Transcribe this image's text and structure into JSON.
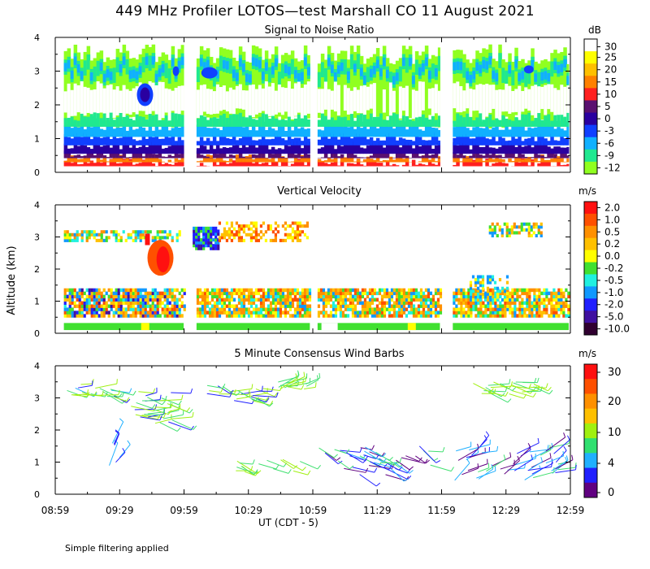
{
  "header": {
    "title": "449 MHz Profiler LOTOS—test Marshall CO 11 August 2021"
  },
  "footer": {
    "note": "Simple filtering applied"
  },
  "axes": {
    "y_label": "Altitude (km)",
    "x_label": "UT  (CDT - 5)",
    "x_ticks": [
      "08:59",
      "09:29",
      "09:59",
      "10:29",
      "10:59",
      "11:29",
      "11:59",
      "12:29",
      "12:59"
    ],
    "y_ticks": [
      "0",
      "1",
      "2",
      "3",
      "4"
    ]
  },
  "colors": {
    "white": "#ffffff"
  },
  "chart_data": [
    {
      "type": "heatmap",
      "title": "Signal to Noise Ratio",
      "unit": "dB",
      "colorbar_labels": [
        "30",
        "25",
        "20",
        "15",
        "10",
        "5",
        "0",
        "-3",
        "-6",
        "-9",
        "-12"
      ],
      "colorbar_colors": [
        "#ffffff",
        "#ffff00",
        "#ffc000",
        "#ff8000",
        "#ff2020",
        "#5a1070",
        "#2a00a0",
        "#1040ff",
        "#10b0ff",
        "#20e890",
        "#90ff20"
      ],
      "xlim_hours": [
        8.983,
        12.983
      ],
      "ylim_km": [
        0,
        4
      ],
      "data_gaps_hours": [
        [
          9.95,
          10.05
        ],
        [
          10.95,
          11.0
        ],
        [
          11.95,
          12.05
        ]
      ]
    },
    {
      "type": "heatmap",
      "title": "Vertical Velocity",
      "unit": "m/s",
      "colorbar_labels": [
        "2.0",
        "1.0",
        "0.5",
        "0.2",
        "0.0",
        "-0.2",
        "-0.5",
        "-1.0",
        "-2.0",
        "-5.0",
        "-10.0"
      ],
      "colorbar_colors": [
        "#ff1010",
        "#ff5000",
        "#ff9000",
        "#ffc000",
        "#ffff00",
        "#40e030",
        "#20f0e0",
        "#1098ff",
        "#2020ff",
        "#4010a0",
        "#300030"
      ],
      "xlim_hours": [
        8.983,
        12.983
      ],
      "ylim_km": [
        0,
        4
      ]
    },
    {
      "type": "scatter",
      "title": "5 Minute Consensus Wind Barbs",
      "unit": "m/s",
      "colorbar_labels": [
        "30",
        "20",
        "10",
        "4",
        "0"
      ],
      "colorbar_colors": [
        "#ff1010",
        "#ff5000",
        "#ff9000",
        "#ffc000",
        "#a0f010",
        "#30e070",
        "#20b0ff",
        "#2020ff",
        "#600080"
      ],
      "xlim_hours": [
        8.983,
        12.983
      ],
      "ylim_km": [
        0,
        4
      ]
    }
  ]
}
